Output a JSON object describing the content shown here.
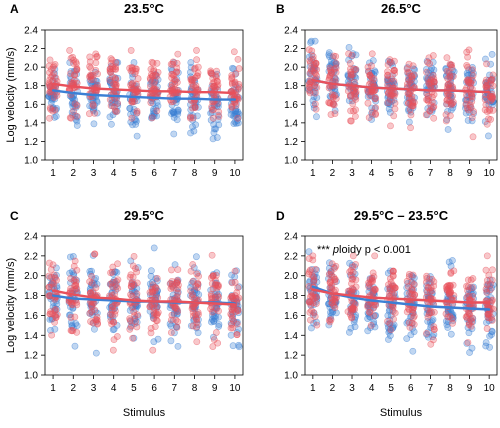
{
  "figure": {
    "y_axis_label": "Log velocity (mm/s)",
    "x_axis_label": "Stimulus",
    "colors": {
      "diploid": "#e8505b",
      "triploid": "#3b7fd4"
    }
  },
  "chart_data": [
    {
      "panel": "A",
      "type": "scatter",
      "title": "23.5°C",
      "xlabel": "",
      "ylabel": "Log velocity (mm/s)",
      "x_ticks": [
        1,
        2,
        3,
        4,
        5,
        6,
        7,
        8,
        9,
        10
      ],
      "y_ticks": [
        "1.0",
        "1.2",
        "1.4",
        "1.6",
        "1.8",
        "2.0",
        "2.2",
        "2.4"
      ],
      "xlim": [
        0.6,
        10.4
      ],
      "ylim": [
        1.0,
        2.4
      ],
      "annotation": "",
      "series": [
        {
          "color": "#e8505b",
          "fit": [
            1.82,
            1.79,
            1.77,
            1.76,
            1.75,
            1.74,
            1.74,
            1.73,
            1.73,
            1.72
          ],
          "spread": {
            "mean": [
              1.86,
              1.83,
              1.81,
              1.8,
              1.79,
              1.78,
              1.78,
              1.77,
              1.77,
              1.76
            ],
            "min": 1.45,
            "max": 2.18
          }
        },
        {
          "color": "#3b7fd4",
          "fit": [
            1.75,
            1.72,
            1.7,
            1.69,
            1.68,
            1.67,
            1.66,
            1.66,
            1.65,
            1.65
          ],
          "spread": {
            "mean": [
              1.74,
              1.71,
              1.69,
              1.68,
              1.67,
              1.66,
              1.65,
              1.65,
              1.64,
              1.64
            ],
            "min": 1.2,
            "max": 2.05
          }
        }
      ]
    },
    {
      "panel": "B",
      "type": "scatter",
      "title": "26.5°C",
      "xlabel": "",
      "ylabel": "",
      "x_ticks": [
        1,
        2,
        3,
        4,
        5,
        6,
        7,
        8,
        9,
        10
      ],
      "y_ticks": [
        "1.0",
        "1.2",
        "1.4",
        "1.6",
        "1.8",
        "2.0",
        "2.2",
        "2.4"
      ],
      "xlim": [
        0.6,
        10.4
      ],
      "ylim": [
        1.0,
        2.4
      ],
      "annotation": "",
      "series": [
        {
          "color": "#e8505b",
          "fit": [
            1.86,
            1.82,
            1.8,
            1.78,
            1.77,
            1.76,
            1.75,
            1.75,
            1.74,
            1.73
          ],
          "spread": {
            "mean": [
              1.86,
              1.82,
              1.8,
              1.78,
              1.77,
              1.76,
              1.75,
              1.75,
              1.74,
              1.73
            ],
            "min": 1.25,
            "max": 2.22
          }
        },
        {
          "color": "#3b7fd4",
          "fit": [
            1.86,
            1.82,
            1.8,
            1.78,
            1.77,
            1.76,
            1.75,
            1.75,
            1.74,
            1.73
          ],
          "spread": {
            "mean": [
              1.86,
              1.82,
              1.8,
              1.79,
              1.78,
              1.77,
              1.76,
              1.75,
              1.75,
              1.74
            ],
            "min": 1.22,
            "max": 2.28
          }
        }
      ]
    },
    {
      "panel": "C",
      "type": "scatter",
      "title": "29.5°C",
      "xlabel": "Stimulus",
      "ylabel": "Log velocity (mm/s)",
      "x_ticks": [
        1,
        2,
        3,
        4,
        5,
        6,
        7,
        8,
        9,
        10
      ],
      "y_ticks": [
        "1.0",
        "1.2",
        "1.4",
        "1.6",
        "1.8",
        "2.0",
        "2.2",
        "2.4"
      ],
      "xlim": [
        0.6,
        10.4
      ],
      "ylim": [
        1.0,
        2.4
      ],
      "annotation": "",
      "series": [
        {
          "color": "#e8505b",
          "fit": [
            1.85,
            1.81,
            1.78,
            1.77,
            1.75,
            1.74,
            1.74,
            1.73,
            1.72,
            1.71
          ],
          "spread": {
            "mean": [
              1.85,
              1.81,
              1.78,
              1.77,
              1.75,
              1.74,
              1.74,
              1.73,
              1.72,
              1.71
            ],
            "min": 1.25,
            "max": 2.22
          }
        },
        {
          "color": "#3b7fd4",
          "fit": [
            1.8,
            1.77,
            1.76,
            1.75,
            1.74,
            1.74,
            1.73,
            1.73,
            1.73,
            1.72
          ],
          "spread": {
            "mean": [
              1.8,
              1.77,
              1.76,
              1.75,
              1.74,
              1.74,
              1.73,
              1.73,
              1.73,
              1.72
            ],
            "min": 1.22,
            "max": 2.28
          }
        }
      ]
    },
    {
      "panel": "D",
      "type": "scatter",
      "title": "29.5°C – 23.5°C",
      "xlabel": "Stimulus",
      "ylabel": "",
      "x_ticks": [
        1,
        2,
        3,
        4,
        5,
        6,
        7,
        8,
        9,
        10
      ],
      "y_ticks": [
        "1.0",
        "1.2",
        "1.4",
        "1.6",
        "1.8",
        "2.0",
        "2.2",
        "2.4"
      ],
      "xlim": [
        0.6,
        10.4
      ],
      "ylim": [
        1.0,
        2.4
      ],
      "annotation": "*** ploidy  p < 0.001",
      "series": [
        {
          "color": "#e8505b",
          "fit": [
            1.86,
            1.82,
            1.8,
            1.78,
            1.77,
            1.76,
            1.75,
            1.74,
            1.73,
            1.73
          ],
          "spread": {
            "mean": [
              1.87,
              1.83,
              1.81,
              1.79,
              1.78,
              1.77,
              1.76,
              1.75,
              1.74,
              1.74
            ],
            "min": 1.3,
            "max": 2.2
          }
        },
        {
          "color": "#3b7fd4",
          "fit": [
            1.89,
            1.82,
            1.78,
            1.75,
            1.73,
            1.71,
            1.69,
            1.68,
            1.67,
            1.66
          ],
          "spread": {
            "mean": [
              1.85,
              1.79,
              1.75,
              1.72,
              1.7,
              1.69,
              1.68,
              1.67,
              1.66,
              1.65
            ],
            "min": 1.2,
            "max": 2.25
          }
        }
      ]
    }
  ]
}
